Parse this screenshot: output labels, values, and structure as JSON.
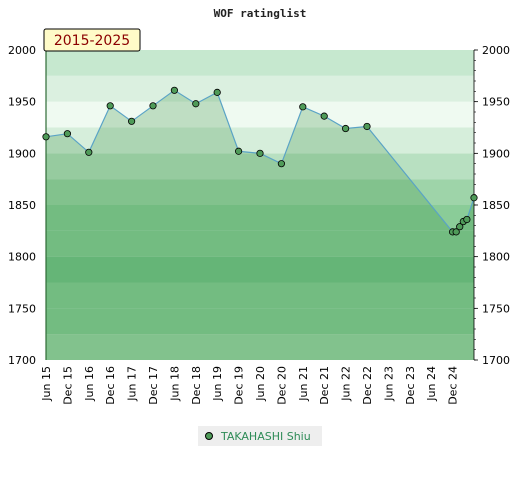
{
  "chart_data": {
    "type": "line",
    "title": "WOF ratinglist",
    "badge": "2015-2025",
    "ylim": [
      1700,
      2000
    ],
    "yticks": [
      1700,
      1750,
      1800,
      1850,
      1900,
      1950,
      2000
    ],
    "x_tick_labels": [
      "Jun 15",
      "Dec 15",
      "Jun 16",
      "Dec 16",
      "Jun 17",
      "Dec 17",
      "Jun 18",
      "Dec 18",
      "Jun 19",
      "Dec 19",
      "Jun 20",
      "Dec 20",
      "Jun 21",
      "Dec 21",
      "Jun 22",
      "Dec 22",
      "Jun 23",
      "Dec 23",
      "Jun 24",
      "Dec 24"
    ],
    "x_range": [
      "2015-06",
      "2025-06"
    ],
    "grid": false,
    "legend_position": "bottom",
    "line_color": "#5aa3c6",
    "marker_color": "#4f9b59",
    "series": [
      {
        "name": "TAKAHASHI Shiu",
        "points": [
          {
            "x": "2015-06",
            "y": 1916
          },
          {
            "x": "2015-12",
            "y": 1919
          },
          {
            "x": "2016-06",
            "y": 1901
          },
          {
            "x": "2016-12",
            "y": 1946
          },
          {
            "x": "2017-06",
            "y": 1931
          },
          {
            "x": "2017-12",
            "y": 1946
          },
          {
            "x": "2018-06",
            "y": 1961
          },
          {
            "x": "2018-12",
            "y": 1948
          },
          {
            "x": "2019-06",
            "y": 1959
          },
          {
            "x": "2019-12",
            "y": 1902
          },
          {
            "x": "2020-06",
            "y": 1900
          },
          {
            "x": "2020-12",
            "y": 1890
          },
          {
            "x": "2021-06",
            "y": 1945
          },
          {
            "x": "2021-12",
            "y": 1936
          },
          {
            "x": "2022-06",
            "y": 1924
          },
          {
            "x": "2022-12",
            "y": 1926
          },
          {
            "x": "2024-12",
            "y": 1824
          },
          {
            "x": "2025-01",
            "y": 1824
          },
          {
            "x": "2025-02",
            "y": 1829
          },
          {
            "x": "2025-03",
            "y": 1834
          },
          {
            "x": "2025-04",
            "y": 1836
          },
          {
            "x": "2025-06",
            "y": 1857
          }
        ]
      }
    ]
  }
}
